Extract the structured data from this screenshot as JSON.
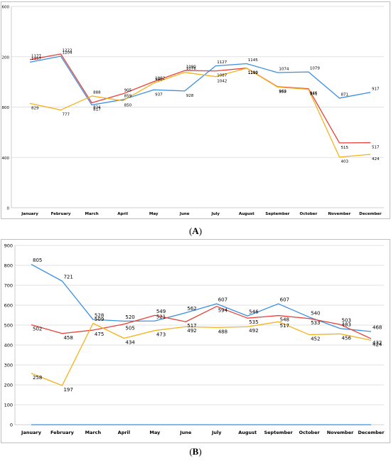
{
  "colors": {
    "blue": "#3b8fe0",
    "red": "#e8403a",
    "yellow": "#f5b21a",
    "grid": "#d9d9d9",
    "axis": "#bfbfbf"
  },
  "captions": {
    "a": "A",
    "b": "B"
  },
  "chart_data": [
    {
      "type": "line",
      "panel": "A",
      "categories": [
        "January",
        "February",
        "March",
        "April",
        "May",
        "June",
        "July",
        "August",
        "September",
        "October",
        "November",
        "December"
      ],
      "ylim": [
        0,
        1600
      ],
      "yticks": [
        0,
        400,
        800,
        1200,
        1600
      ],
      "grid": true,
      "series": [
        {
          "color": "blue",
          "values": [
            1157,
            1204,
            817,
            859,
            937,
            928,
            1127,
            1145,
            1074,
            1079,
            871,
            917
          ]
        },
        {
          "color": "red",
          "values": [
            1177,
            1222,
            834,
            905,
            1002,
            1090,
            1087,
            1110,
            962,
            946,
            515,
            517
          ]
        },
        {
          "color": "yellow",
          "values": [
            829,
            777,
            888,
            850,
            990,
            1076,
            1042,
            1109,
            959,
            941,
            403,
            424
          ]
        }
      ]
    },
    {
      "type": "line",
      "panel": "B",
      "categories": [
        "January",
        "February",
        "March",
        "April",
        "May",
        "June",
        "July",
        "August",
        "September",
        "October",
        "November",
        "December"
      ],
      "ylim": [
        0,
        900
      ],
      "yticks": [
        0,
        100,
        200,
        300,
        400,
        500,
        600,
        700,
        800,
        900
      ],
      "grid": true,
      "series": [
        {
          "color": "blue",
          "values": [
            805,
            721,
            528,
            520,
            521,
            562,
            607,
            546,
            607,
            540,
            483,
            468
          ]
        },
        {
          "color": "red",
          "values": [
            502,
            458,
            475,
            505,
            549,
            517,
            594,
            535,
            548,
            533,
            503,
            432
          ]
        },
        {
          "color": "yellow",
          "values": [
            258,
            197,
            509,
            434,
            473,
            492,
            488,
            492,
            517,
            452,
            456,
            424
          ]
        },
        {
          "color": "blue",
          "values": [
            0,
            0,
            0,
            0,
            0,
            0,
            0,
            0,
            0,
            0,
            0,
            0
          ],
          "unlabeled": true
        }
      ]
    }
  ]
}
